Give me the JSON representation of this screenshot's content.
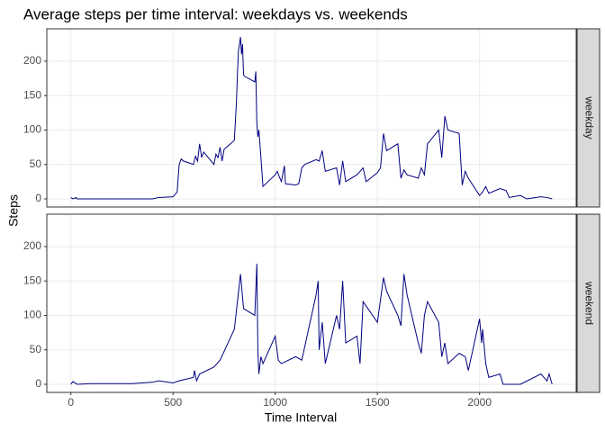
{
  "chart_data": {
    "type": "line",
    "title": "Average steps per time interval: weekdays vs. weekends",
    "x_label": "Time Interval",
    "y_label": "Steps",
    "xlim": [
      -117.75,
      2472.75
    ],
    "xticks": [
      0,
      500,
      1000,
      1500,
      2000
    ],
    "ylim": [
      -11.8,
      247
    ],
    "yticks": [
      0,
      50,
      100,
      150,
      200
    ],
    "grid": true,
    "series": [
      {
        "name": "weekday",
        "color": "#000080",
        "x": [
          0,
          10,
          25,
          30,
          100,
          200,
          300,
          400,
          430,
          500,
          520,
          530,
          540,
          550,
          600,
          610,
          620,
          630,
          640,
          650,
          700,
          710,
          720,
          730,
          740,
          750,
          800,
          810,
          815,
          820,
          830,
          835,
          840,
          845,
          850,
          900,
          905,
          910,
          915,
          920,
          930,
          940,
          1000,
          1010,
          1020,
          1030,
          1045,
          1050,
          1100,
          1115,
          1130,
          1145,
          1200,
          1215,
          1230,
          1245,
          1300,
          1315,
          1330,
          1345,
          1400,
          1430,
          1445,
          1500,
          1515,
          1530,
          1545,
          1600,
          1615,
          1630,
          1645,
          1700,
          1715,
          1730,
          1745,
          1800,
          1815,
          1830,
          1845,
          1900,
          1915,
          1930,
          1945,
          2000,
          2015,
          2030,
          2045,
          2100,
          2130,
          2145,
          2200,
          2230,
          2300,
          2330,
          2355
        ],
        "values": [
          2,
          0,
          2,
          0,
          0,
          0,
          0,
          0,
          2,
          3,
          10,
          50,
          58,
          55,
          50,
          62,
          55,
          80,
          60,
          68,
          50,
          65,
          60,
          75,
          55,
          72,
          85,
          140,
          180,
          215,
          235,
          210,
          225,
          180,
          178,
          170,
          185,
          110,
          90,
          100,
          60,
          18,
          35,
          40,
          32,
          25,
          48,
          22,
          20,
          22,
          45,
          50,
          57,
          55,
          70,
          40,
          45,
          20,
          55,
          25,
          35,
          45,
          25,
          38,
          45,
          95,
          70,
          80,
          30,
          42,
          35,
          30,
          45,
          35,
          80,
          100,
          60,
          120,
          100,
          95,
          20,
          40,
          30,
          5,
          10,
          18,
          8,
          15,
          12,
          2,
          5,
          0,
          3,
          2,
          0
        ]
      },
      {
        "name": "weekend",
        "color": "#000080",
        "x": [
          0,
          10,
          30,
          100,
          200,
          300,
          400,
          430,
          500,
          530,
          600,
          605,
          615,
          630,
          700,
          730,
          800,
          815,
          830,
          845,
          900,
          910,
          915,
          920,
          930,
          940,
          1000,
          1015,
          1030,
          1100,
          1130,
          1200,
          1210,
          1215,
          1230,
          1245,
          1300,
          1315,
          1330,
          1345,
          1400,
          1415,
          1430,
          1500,
          1530,
          1545,
          1600,
          1615,
          1630,
          1645,
          1700,
          1715,
          1730,
          1745,
          1800,
          1815,
          1830,
          1845,
          1900,
          1930,
          1945,
          2000,
          2010,
          2015,
          2030,
          2045,
          2100,
          2115,
          2200,
          2300,
          2330,
          2340,
          2355
        ],
        "values": [
          0,
          4,
          0,
          1,
          1,
          1,
          3,
          5,
          2,
          5,
          10,
          20,
          5,
          15,
          25,
          35,
          80,
          120,
          160,
          110,
          100,
          175,
          50,
          15,
          40,
          30,
          70,
          35,
          30,
          40,
          35,
          130,
          150,
          50,
          90,
          30,
          100,
          80,
          150,
          60,
          70,
          30,
          120,
          90,
          155,
          135,
          100,
          85,
          160,
          130,
          60,
          45,
          100,
          120,
          90,
          40,
          60,
          30,
          45,
          40,
          20,
          95,
          60,
          80,
          30,
          10,
          15,
          0,
          0,
          15,
          5,
          15,
          0
        ]
      }
    ]
  }
}
